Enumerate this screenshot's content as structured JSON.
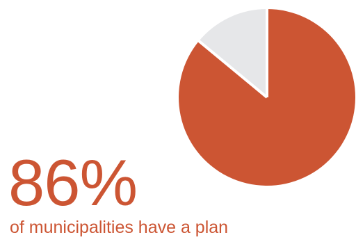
{
  "headline": {
    "value": "86%",
    "caption": "of municipalities have a plan"
  },
  "colors": {
    "primary": "#cc5533",
    "secondary": "#e6e7e9",
    "divider": "#ffffff"
  },
  "chart_data": {
    "type": "pie",
    "title": "",
    "slices": [
      {
        "label": "",
        "value": 86,
        "color": "#cc5533"
      },
      {
        "label": "",
        "value": 14,
        "color": "#e6e7e9"
      }
    ],
    "start": "top",
    "direction": "clockwise",
    "legend": "none"
  }
}
